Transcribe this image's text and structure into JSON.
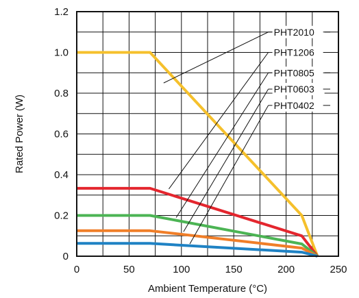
{
  "chart_data": {
    "type": "line",
    "title": "",
    "xlabel": "Ambient Temperature (°C)",
    "ylabel": "Rated Power (W)",
    "xlim": [
      0,
      250
    ],
    "ylim": [
      0,
      1.2
    ],
    "xticks": [
      0,
      50,
      100,
      150,
      200,
      250
    ],
    "yticks": [
      0,
      0.2,
      0.4,
      0.6,
      0.8,
      1.0,
      1.2
    ],
    "xtick_labels": [
      "0",
      "50",
      "100",
      "150",
      "200",
      "250"
    ],
    "ytick_labels": [
      "0",
      "0.2",
      "0.4",
      "0.6",
      "0.8",
      "1.0",
      "1.2"
    ],
    "grid": true,
    "legend": "none",
    "series": [
      {
        "name": "PHT2010",
        "color": "#F5C02C",
        "x": [
          0,
          70,
          215,
          230
        ],
        "y": [
          1.0,
          1.0,
          0.2,
          0.0
        ]
      },
      {
        "name": "PHT1206",
        "color": "#E4262E",
        "x": [
          0,
          70,
          215,
          230
        ],
        "y": [
          0.333,
          0.333,
          0.1,
          0.0
        ]
      },
      {
        "name": "PHT0805",
        "color": "#4CB454",
        "x": [
          0,
          70,
          215,
          230
        ],
        "y": [
          0.2,
          0.2,
          0.06,
          0.0
        ]
      },
      {
        "name": "PHT0603",
        "color": "#F07E28",
        "x": [
          0,
          70,
          215,
          230
        ],
        "y": [
          0.125,
          0.125,
          0.04,
          0.0
        ]
      },
      {
        "name": "PHT0402",
        "color": "#1F82C4",
        "x": [
          0,
          70,
          215,
          230
        ],
        "y": [
          0.063,
          0.063,
          0.02,
          0.0
        ]
      }
    ],
    "annotations": [
      {
        "series": "PHT2010",
        "text": "PHT2010",
        "point": [
          83,
          0.85
        ],
        "label_at": [
          183,
          1.1
        ]
      },
      {
        "series": "PHT1206",
        "text": "PHT1206",
        "point": [
          88,
          0.33
        ],
        "label_at": [
          183,
          1.0
        ]
      },
      {
        "series": "PHT0805",
        "text": "PHT0805",
        "point": [
          95,
          0.19
        ],
        "label_at": [
          183,
          0.9
        ]
      },
      {
        "series": "PHT0603",
        "text": "PHT0603",
        "point": [
          102,
          0.12
        ],
        "label_at": [
          183,
          0.82
        ]
      },
      {
        "series": "PHT0402",
        "text": "PHT0402",
        "point": [
          108,
          0.06
        ],
        "label_at": [
          183,
          0.74
        ]
      }
    ]
  }
}
